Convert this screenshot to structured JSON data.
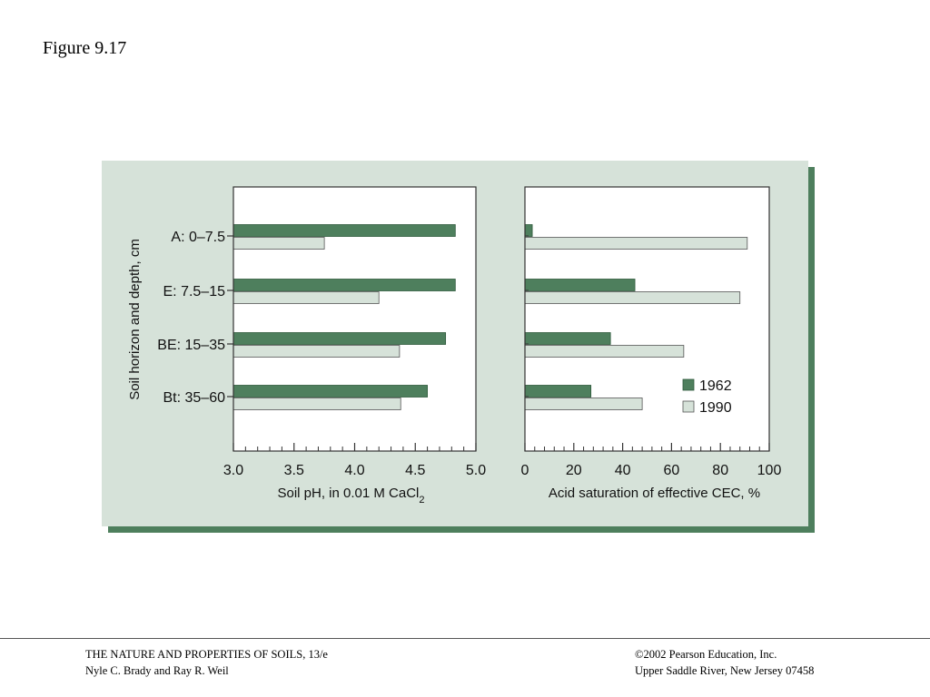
{
  "figure_label": "Figure 9.17",
  "footer": {
    "left_line1": "THE NATURE AND PROPERTIES OF SOILS, 13/e",
    "left_line2": "Nyle C. Brady and Ray R. Weil",
    "right_line1": "©2002 Pearson Education, Inc.",
    "right_line2": "Upper Saddle River, New Jersey  07458"
  },
  "colors": {
    "panel_background": "#d6e2d9",
    "panel_shadow": "#4e7f5d",
    "plot_background": "#ffffff",
    "bar_1962": "#4e7f5d",
    "bar_1990": "#d6e2d9"
  },
  "chart_data": [
    {
      "type": "bar",
      "orientation": "horizontal",
      "ylabel": "Soil horizon and depth, cm",
      "xlabel": "Soil pH, in 0.01 M CaCl",
      "xlabel_subscript": "2",
      "xlim": [
        3.0,
        5.0
      ],
      "xticks": [
        "3.0",
        "3.5",
        "4.0",
        "4.5",
        "5.0"
      ],
      "xtick_values": [
        3.0,
        3.5,
        4.0,
        4.5,
        5.0
      ],
      "categories": [
        "A: 0–7.5",
        "E: 7.5–15",
        "BE: 15–35",
        "Bt: 35–60"
      ],
      "series": [
        {
          "name": "1962",
          "values": [
            4.83,
            4.83,
            4.75,
            4.6
          ]
        },
        {
          "name": "1990",
          "values": [
            3.75,
            4.2,
            4.37,
            4.38
          ]
        }
      ]
    },
    {
      "type": "bar",
      "orientation": "horizontal",
      "xlabel": "Acid saturation of effective CEC, %",
      "xlim": [
        0,
        100
      ],
      "xticks": [
        "0",
        "20",
        "40",
        "60",
        "80",
        "100"
      ],
      "xtick_values": [
        0,
        20,
        40,
        60,
        80,
        100
      ],
      "categories": [
        "A: 0–7.5",
        "E: 7.5–15",
        "BE: 15–35",
        "Bt: 35–60"
      ],
      "series": [
        {
          "name": "1962",
          "values": [
            3,
            45,
            35,
            27
          ]
        },
        {
          "name": "1990",
          "values": [
            91,
            88,
            65,
            48
          ]
        }
      ],
      "legend": {
        "position": "bottom-right",
        "entries": [
          "1962",
          "1990"
        ]
      }
    }
  ]
}
